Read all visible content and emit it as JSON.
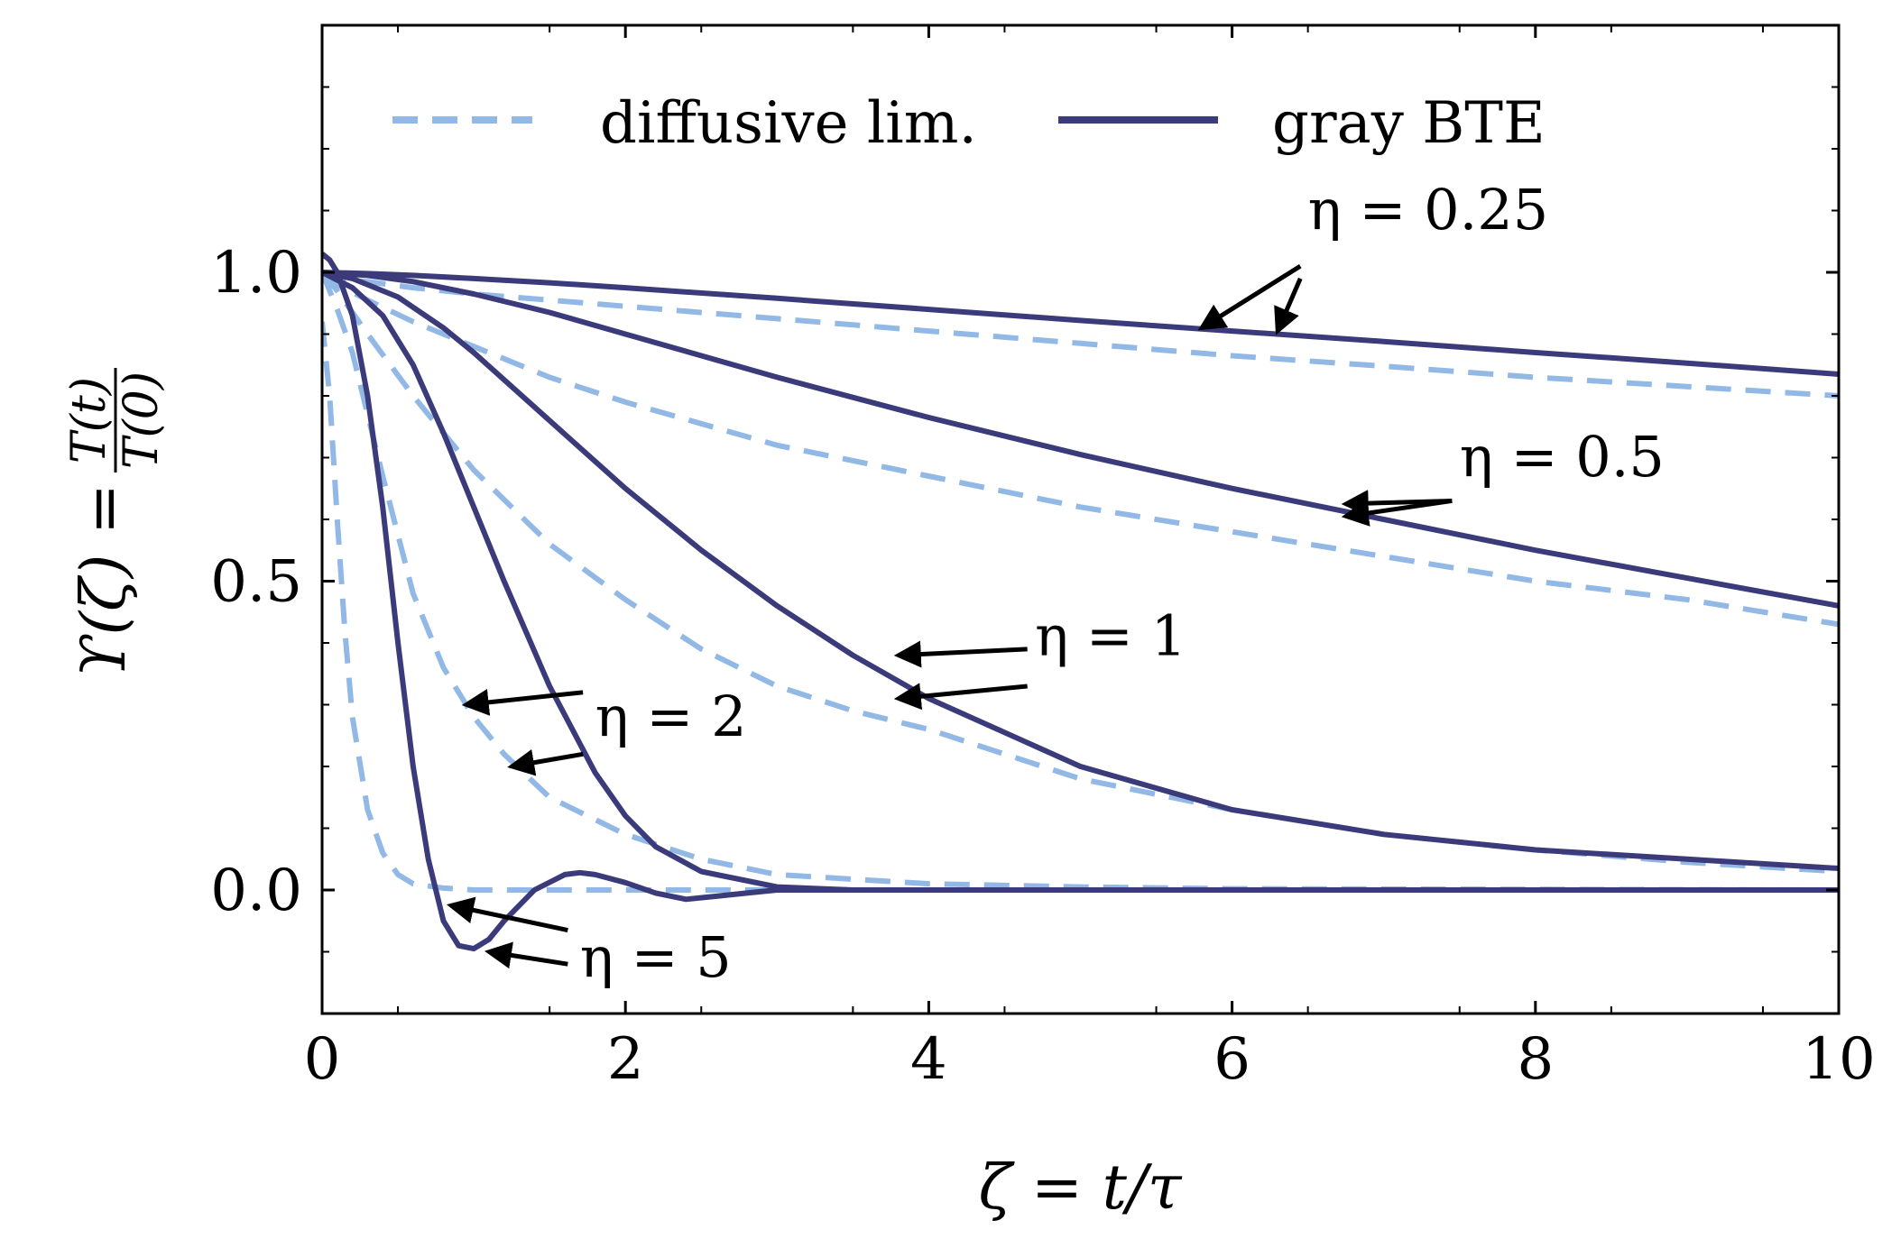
{
  "chart_data": {
    "type": "line",
    "xlabel": "ζ = t/τ",
    "ylabel_main": "ϒ(ζ) = ",
    "ylabel_num": "T(t)",
    "ylabel_den": "T(0)",
    "xlim": [
      0,
      10
    ],
    "ylim": [
      -0.2,
      1.4
    ],
    "xticks": [
      0,
      2,
      4,
      6,
      8,
      10
    ],
    "xtick_labels": [
      "0",
      "2",
      "4",
      "6",
      "8",
      "10"
    ],
    "yticks": [
      0.0,
      0.5,
      1.0
    ],
    "ytick_labels": [
      "0.0",
      "0.5",
      "1.0"
    ],
    "grid": false,
    "legend": {
      "position": "top",
      "entries": [
        {
          "label": "diffusive lim.",
          "style": "dashed",
          "color": "#92b8e6"
        },
        {
          "label": "gray BTE",
          "style": "solid",
          "color": "#3b3a7a"
        }
      ]
    },
    "colors": {
      "diffusive": "#92b8e6",
      "bte": "#3b3a7a",
      "arrow": "#000000"
    },
    "series": [
      {
        "group": "diffusive lim.",
        "eta": 0.25,
        "x": [
          0,
          0.1,
          0.3,
          0.6,
          1,
          1.5,
          2,
          3,
          4,
          5,
          6,
          7,
          8,
          9,
          10
        ],
        "y": [
          1.0,
          0.99,
          0.985,
          0.975,
          0.965,
          0.955,
          0.945,
          0.925,
          0.905,
          0.885,
          0.865,
          0.848,
          0.83,
          0.815,
          0.8
        ]
      },
      {
        "group": "diffusive lim.",
        "eta": 0.5,
        "x": [
          0,
          0.1,
          0.3,
          0.6,
          1,
          1.5,
          2,
          3,
          4,
          5,
          6,
          7,
          8,
          9,
          10
        ],
        "y": [
          1.0,
          0.98,
          0.955,
          0.92,
          0.88,
          0.83,
          0.79,
          0.72,
          0.67,
          0.62,
          0.58,
          0.54,
          0.5,
          0.47,
          0.43
        ]
      },
      {
        "group": "diffusive lim.",
        "eta": 1,
        "x": [
          0,
          0.1,
          0.3,
          0.6,
          1,
          1.5,
          2,
          2.5,
          3,
          3.5,
          4,
          5,
          6,
          7,
          8,
          9,
          10
        ],
        "y": [
          1.0,
          0.97,
          0.9,
          0.8,
          0.68,
          0.56,
          0.47,
          0.39,
          0.33,
          0.29,
          0.26,
          0.18,
          0.13,
          0.09,
          0.065,
          0.045,
          0.03
        ]
      },
      {
        "group": "diffusive lim.",
        "eta": 2,
        "x": [
          0,
          0.1,
          0.2,
          0.4,
          0.6,
          0.8,
          1.0,
          1.2,
          1.5,
          2.0,
          2.5,
          3.0,
          4,
          5,
          6,
          8,
          10
        ],
        "y": [
          1.0,
          0.94,
          0.87,
          0.67,
          0.48,
          0.36,
          0.28,
          0.22,
          0.15,
          0.09,
          0.05,
          0.025,
          0.01,
          0.005,
          0.002,
          0.001,
          0.0
        ]
      },
      {
        "group": "diffusive lim.",
        "eta": 5,
        "x": [
          0,
          0.05,
          0.1,
          0.15,
          0.2,
          0.3,
          0.4,
          0.5,
          0.6,
          0.8,
          1.0,
          1.5,
          2,
          3,
          4,
          6,
          10
        ],
        "y": [
          0.92,
          0.8,
          0.6,
          0.42,
          0.28,
          0.13,
          0.06,
          0.025,
          0.01,
          0.003,
          0.0,
          0.0,
          0.0,
          0.0,
          0.0,
          0.0,
          0.0
        ]
      },
      {
        "group": "gray BTE",
        "eta": 0.25,
        "x": [
          0,
          0.3,
          0.6,
          1,
          1.5,
          2,
          3,
          4,
          5,
          6,
          7,
          8,
          9,
          10
        ],
        "y": [
          1.0,
          0.998,
          0.995,
          0.99,
          0.983,
          0.975,
          0.958,
          0.94,
          0.922,
          0.905,
          0.888,
          0.87,
          0.853,
          0.835
        ]
      },
      {
        "group": "gray BTE",
        "eta": 0.5,
        "x": [
          0,
          0.3,
          0.6,
          1,
          1.5,
          2,
          3,
          4,
          5,
          6,
          7,
          8,
          9,
          10
        ],
        "y": [
          1.0,
          0.995,
          0.985,
          0.965,
          0.935,
          0.9,
          0.83,
          0.765,
          0.705,
          0.65,
          0.6,
          0.55,
          0.505,
          0.46
        ]
      },
      {
        "group": "gray BTE",
        "eta": 1,
        "x": [
          0,
          0.2,
          0.5,
          0.8,
          1.0,
          1.5,
          2.0,
          2.5,
          3.0,
          3.5,
          4,
          5,
          6,
          7,
          8,
          9,
          10
        ],
        "y": [
          1.0,
          0.99,
          0.96,
          0.91,
          0.87,
          0.76,
          0.65,
          0.55,
          0.46,
          0.38,
          0.31,
          0.2,
          0.13,
          0.09,
          0.065,
          0.05,
          0.035
        ]
      },
      {
        "group": "gray BTE",
        "eta": 2,
        "x": [
          0,
          0.2,
          0.4,
          0.6,
          0.8,
          1.0,
          1.2,
          1.5,
          1.8,
          2.0,
          2.2,
          2.5,
          3.0,
          3.5,
          4,
          6,
          10
        ],
        "y": [
          1.0,
          0.975,
          0.93,
          0.85,
          0.74,
          0.62,
          0.5,
          0.33,
          0.19,
          0.12,
          0.07,
          0.03,
          0.005,
          0.0,
          0.0,
          0.0,
          0.0
        ]
      },
      {
        "group": "gray BTE",
        "eta": 5,
        "x": [
          0,
          0.05,
          0.1,
          0.2,
          0.3,
          0.4,
          0.5,
          0.6,
          0.7,
          0.8,
          0.9,
          1.0,
          1.1,
          1.2,
          1.4,
          1.6,
          1.7,
          1.8,
          2.0,
          2.2,
          2.4,
          2.6,
          2.8,
          3.0,
          3.5,
          4,
          6,
          10
        ],
        "y": [
          1.03,
          1.02,
          1.0,
          0.93,
          0.8,
          0.62,
          0.4,
          0.2,
          0.05,
          -0.05,
          -0.09,
          -0.095,
          -0.08,
          -0.05,
          0.0,
          0.025,
          0.028,
          0.025,
          0.012,
          -0.005,
          -0.015,
          -0.01,
          -0.005,
          0.0,
          0.0,
          0.0,
          0.0,
          0.0
        ]
      }
    ],
    "annotations": [
      {
        "text": "η = 0.25",
        "x": 6.5,
        "y": 1.07,
        "arrows": [
          {
            "from": [
              6.45,
              1.01
            ],
            "to": [
              5.8,
              0.91
            ]
          },
          {
            "from": [
              6.45,
              0.99
            ],
            "to": [
              6.3,
              0.905
            ]
          }
        ]
      },
      {
        "text": "η = 0.5",
        "x": 7.5,
        "y": 0.67,
        "arrows": [
          {
            "from": [
              7.45,
              0.63
            ],
            "to": [
              6.75,
              0.625
            ]
          },
          {
            "from": [
              7.45,
              0.63
            ],
            "to": [
              6.75,
              0.605
            ]
          }
        ]
      },
      {
        "text": "η = 1",
        "x": 4.7,
        "y": 0.38,
        "arrows": [
          {
            "from": [
              4.65,
              0.39
            ],
            "to": [
              3.8,
              0.38
            ]
          },
          {
            "from": [
              4.65,
              0.33
            ],
            "to": [
              3.8,
              0.31
            ]
          }
        ]
      },
      {
        "text": "η = 2",
        "x": 1.8,
        "y": 0.25,
        "arrows": [
          {
            "from": [
              1.72,
              0.32
            ],
            "to": [
              0.95,
              0.3
            ]
          },
          {
            "from": [
              1.72,
              0.22
            ],
            "to": [
              1.25,
              0.2
            ]
          }
        ]
      },
      {
        "text": "η = 5",
        "x": 1.7,
        "y": -0.14,
        "arrows": [
          {
            "from": [
              1.62,
              -0.065
            ],
            "to": [
              0.85,
              -0.025
            ]
          },
          {
            "from": [
              1.62,
              -0.12
            ],
            "to": [
              1.1,
              -0.1
            ]
          }
        ]
      }
    ]
  }
}
